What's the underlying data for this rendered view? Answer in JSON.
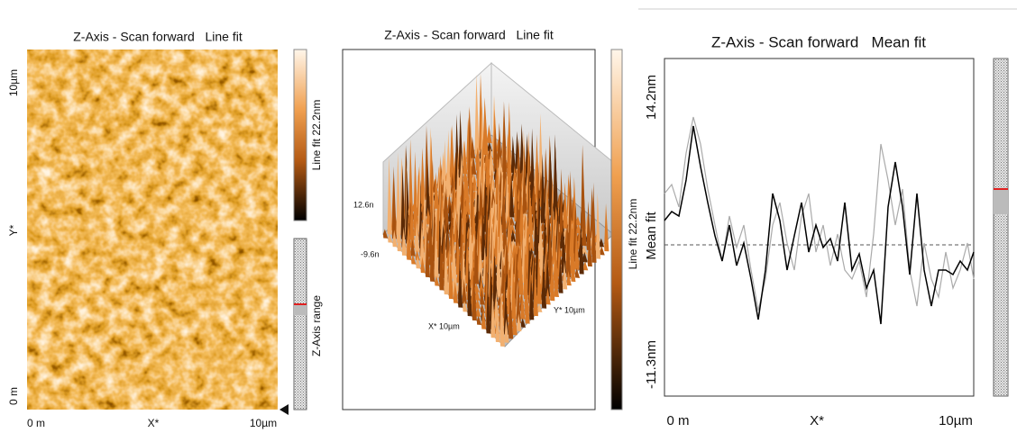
{
  "panels": [
    {
      "title": "Z-Axis - Scan forward   Line fit",
      "y_axis": {
        "max": "10µm",
        "name": "Y*",
        "min": "0 m"
      },
      "x_axis": {
        "min": "0 m",
        "name": "X*",
        "max": "10µm"
      },
      "colorbar_label": "Line fit 22.2nm",
      "range_label": "Z-Axis range"
    },
    {
      "title": "Z-Axis - Scan forward   Line fit",
      "z_max": "12.6n",
      "z_min": "-9.6n",
      "x_axis_label": "X* 10µm",
      "y_axis_label": "Y* 10µm",
      "colorbar_label": "Line fit 22.2nm"
    },
    {
      "title": "Z-Axis - Scan forward   Mean fit",
      "y_axis": {
        "max": "14.2nm",
        "name": "Mean fit",
        "min": "-11.3nm"
      },
      "x_axis": {
        "min": "0 m",
        "name": "X*",
        "max": "10µm"
      }
    }
  ]
}
